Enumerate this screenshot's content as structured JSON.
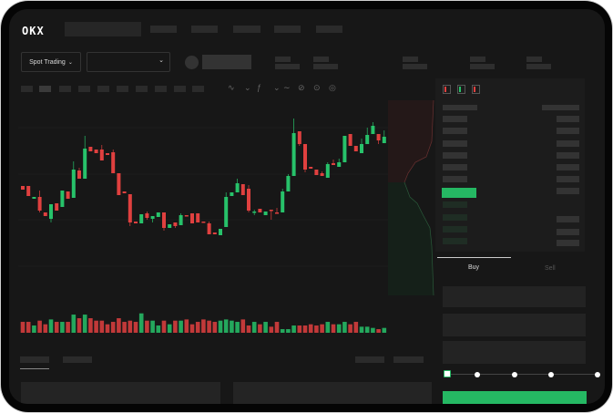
{
  "header": {
    "logo": "OKX"
  },
  "market": {
    "mode_label": "Spot Trading",
    "pair_select_value": ""
  },
  "toolbar": {
    "icons": [
      "indicator-icon",
      "chart-type-icon",
      "fx-icon",
      "line-icon",
      "draw-icon",
      "camera-icon",
      "settings-icon",
      "fullscreen-icon"
    ]
  },
  "order_book": {
    "view_icons": [
      "both-sides-icon",
      "bids-only-icon",
      "asks-only-icon"
    ]
  },
  "trade": {
    "tabs": [
      {
        "label": "Buy",
        "active": true
      },
      {
        "label": "Sell",
        "active": false
      }
    ],
    "slider_percent": 0,
    "submit_color": "#25b863"
  },
  "colors": {
    "up": "#27c26a",
    "down": "#e0403f",
    "background": "#171717",
    "accent": "#25b863"
  },
  "chart_data": {
    "type": "candlestick",
    "title": "",
    "xlabel": "",
    "ylabel": "",
    "grid": true,
    "candles": [
      [
        57,
        53,
        57,
        53
      ],
      [
        57,
        46,
        57,
        46
      ],
      [
        43,
        45,
        45,
        43
      ],
      [
        45,
        30,
        52,
        28
      ],
      [
        28,
        24,
        28,
        24
      ],
      [
        21,
        37,
        37,
        17
      ],
      [
        38,
        30,
        38,
        30
      ],
      [
        34,
        52,
        52,
        34
      ],
      [
        51,
        43,
        51,
        43
      ],
      [
        44,
        75,
        84,
        44
      ],
      [
        74,
        65,
        77,
        65
      ],
      [
        65,
        98,
        112,
        65
      ],
      [
        100,
        95,
        100,
        95
      ],
      [
        97,
        93,
        97,
        93
      ],
      [
        97,
        85,
        102,
        85
      ],
      [
        93,
        91,
        93,
        91
      ],
      [
        94,
        71,
        97,
        71
      ],
      [
        71,
        47,
        71,
        47
      ],
      [
        51,
        49,
        51,
        49
      ],
      [
        48,
        17,
        48,
        13
      ],
      [
        18,
        16,
        18,
        16
      ],
      [
        16,
        26,
        26,
        16
      ],
      [
        27,
        22,
        29,
        20
      ],
      [
        21,
        24,
        24,
        17
      ],
      [
        23,
        28,
        28,
        23
      ],
      [
        28,
        11,
        28,
        8
      ],
      [
        11,
        15,
        15,
        11
      ],
      [
        17,
        13,
        17,
        11
      ],
      [
        14,
        25,
        27,
        14
      ],
      [
        25,
        24,
        25,
        24
      ],
      [
        27,
        16,
        27,
        16
      ],
      [
        27,
        17,
        27,
        17
      ],
      [
        18,
        17,
        18,
        17
      ],
      [
        16,
        4,
        18,
        4
      ],
      [
        6,
        4,
        6,
        4
      ],
      [
        3,
        10,
        10,
        3
      ],
      [
        12,
        45,
        50,
        12
      ],
      [
        46,
        50,
        50,
        46
      ],
      [
        50,
        60,
        65,
        50
      ],
      [
        59,
        47,
        59,
        47
      ],
      [
        54,
        30,
        58,
        28
      ],
      [
        28,
        29,
        31,
        25
      ],
      [
        32,
        28,
        32,
        28
      ],
      [
        25,
        29,
        29,
        25
      ],
      [
        31,
        30,
        31,
        20
      ],
      [
        28,
        27,
        33,
        27
      ],
      [
        28,
        51,
        54,
        28
      ],
      [
        51,
        68,
        70,
        51
      ],
      [
        68,
        115,
        131,
        68
      ],
      [
        117,
        103,
        117,
        101
      ],
      [
        103,
        75,
        103,
        72
      ],
      [
        78,
        76,
        78,
        76
      ],
      [
        75,
        69,
        75,
        69
      ],
      [
        71,
        68,
        73,
        68
      ],
      [
        66,
        81,
        83,
        66
      ],
      [
        82,
        80,
        86,
        80
      ],
      [
        78,
        83,
        87,
        78
      ],
      [
        83,
        112,
        112,
        83
      ],
      [
        114,
        101,
        114,
        101
      ],
      [
        101,
        95,
        101,
        95
      ],
      [
        93,
        103,
        109,
        93
      ],
      [
        103,
        113,
        121,
        103
      ],
      [
        114,
        123,
        127,
        114
      ],
      [
        114,
        107,
        114,
        103
      ],
      [
        104,
        111,
        118,
        104
      ]
    ],
    "candle_format": [
      "open",
      "close",
      "high",
      "low"
    ],
    "volumes": [
      9,
      9,
      6,
      10,
      7,
      11,
      9,
      9,
      9,
      15,
      12,
      15,
      12,
      10,
      10,
      7,
      9,
      12,
      9,
      10,
      9,
      16,
      10,
      10,
      6,
      10,
      7,
      10,
      10,
      11,
      7,
      9,
      11,
      10,
      9,
      10,
      11,
      10,
      9,
      11,
      6,
      9,
      7,
      9,
      5,
      9,
      3,
      3,
      6,
      6,
      6,
      7,
      6,
      7,
      9,
      7,
      7,
      9,
      7,
      9,
      5,
      5,
      4,
      3,
      4
    ]
  }
}
